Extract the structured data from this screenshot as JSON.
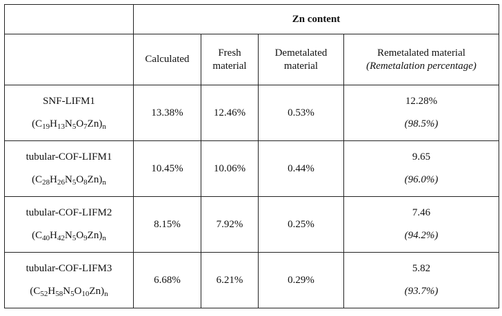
{
  "table": {
    "group_header": "Zn content",
    "columns": {
      "calculated": "Calculated",
      "fresh_line1": "Fresh",
      "fresh_line2": "material",
      "demetalated_line1": "Demetalated",
      "demetalated_line2": "material",
      "remetalated_line1": "Remetalated material",
      "remetalated_line2": "(Remetalation percentage)"
    },
    "rows": [
      {
        "name": "SNF-LIFM1",
        "formula": [
          [
            "(C",
            ""
          ],
          [
            "19",
            "sub"
          ],
          [
            "H",
            ""
          ],
          [
            "13",
            "sub"
          ],
          [
            "N",
            ""
          ],
          [
            "5",
            "sub"
          ],
          [
            "O",
            ""
          ],
          [
            "7",
            "sub"
          ],
          [
            "Zn)",
            ""
          ],
          [
            "n",
            "sub"
          ]
        ],
        "calculated": "13.38%",
        "fresh": "12.46%",
        "demetalated": "0.53%",
        "remetalated": "12.28%",
        "remetalation_percentage": "(98.5%)"
      },
      {
        "name": "tubular-COF-LIFM1",
        "formula": [
          [
            "(C",
            ""
          ],
          [
            "28",
            "sub"
          ],
          [
            "H",
            ""
          ],
          [
            "26",
            "sub"
          ],
          [
            "N",
            ""
          ],
          [
            "5",
            "sub"
          ],
          [
            "O",
            ""
          ],
          [
            "8",
            "sub"
          ],
          [
            "Zn)",
            ""
          ],
          [
            "n",
            "sub"
          ]
        ],
        "calculated": "10.45%",
        "fresh": "10.06%",
        "demetalated": "0.44%",
        "remetalated": "9.65",
        "remetalation_percentage": "(96.0%)"
      },
      {
        "name": "tubular-COF-LIFM2",
        "formula": [
          [
            "(C",
            ""
          ],
          [
            "40",
            "sub"
          ],
          [
            "H",
            ""
          ],
          [
            "42",
            "sub"
          ],
          [
            "N",
            ""
          ],
          [
            "5",
            "sub"
          ],
          [
            "O",
            ""
          ],
          [
            "9",
            "sub"
          ],
          [
            "Zn)",
            ""
          ],
          [
            "n",
            "sub"
          ]
        ],
        "calculated": "8.15%",
        "fresh": "7.92%",
        "demetalated": "0.25%",
        "remetalated": "7.46",
        "remetalation_percentage": "(94.2%)"
      },
      {
        "name": "tubular-COF-LIFM3",
        "formula": [
          [
            "(C",
            ""
          ],
          [
            "52",
            "sub"
          ],
          [
            "H",
            ""
          ],
          [
            "58",
            "sub"
          ],
          [
            "N",
            ""
          ],
          [
            "5",
            "sub"
          ],
          [
            "O",
            ""
          ],
          [
            "10",
            "sub"
          ],
          [
            "Zn)",
            ""
          ],
          [
            "n",
            "sub"
          ]
        ],
        "calculated": "6.68%",
        "fresh": "6.21%",
        "demetalated": "0.29%",
        "remetalated": "5.82",
        "remetalation_percentage": "(93.7%)"
      }
    ]
  }
}
